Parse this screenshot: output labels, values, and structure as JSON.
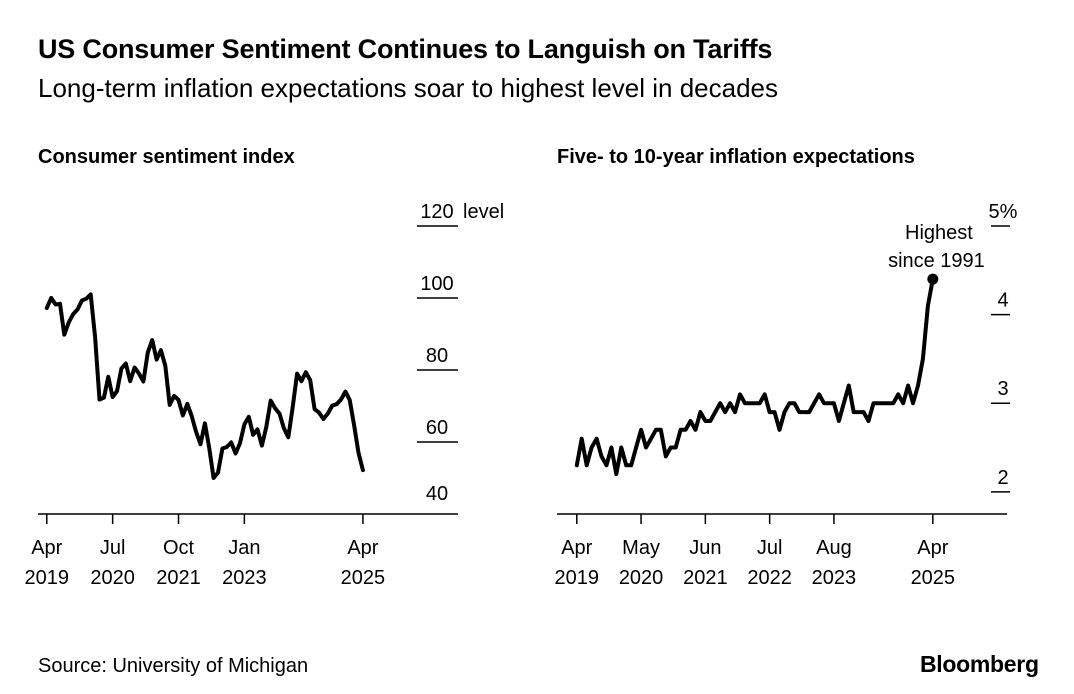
{
  "header": {
    "title": "US Consumer Sentiment Continues to Languish on Tariffs",
    "subtitle": "Long-term inflation expectations soar to highest level in decades"
  },
  "footer": {
    "source": "Source: University of Michigan",
    "brand": "Bloomberg"
  },
  "chart_data": [
    {
      "type": "line",
      "title": "Consumer sentiment index",
      "ylabel": "level",
      "ylim": [
        40,
        120
      ],
      "yticks": [
        {
          "value": 120,
          "label": "120"
        },
        {
          "value": 100,
          "label": "100"
        },
        {
          "value": 80,
          "label": "80"
        },
        {
          "value": 60,
          "label": "60"
        },
        {
          "value": 40,
          "label": "40"
        }
      ],
      "xlim": [
        "2019-02",
        "2026-05"
      ],
      "xticks": [
        {
          "date": "2019-04",
          "month": "Apr",
          "year": "2019"
        },
        {
          "date": "2020-07",
          "month": "Jul",
          "year": "2020"
        },
        {
          "date": "2021-10",
          "month": "Oct",
          "year": "2021"
        },
        {
          "date": "2023-01",
          "month": "Jan",
          "year": "2023"
        },
        {
          "date": "2025-04",
          "month": "Apr",
          "year": "2025"
        }
      ],
      "grid": false,
      "series": [
        {
          "x": [
            "2019-04",
            "2019-05",
            "2019-06",
            "2019-07",
            "2019-08",
            "2019-09",
            "2019-10",
            "2019-11",
            "2019-12",
            "2020-01",
            "2020-02",
            "2020-03",
            "2020-04",
            "2020-05",
            "2020-06",
            "2020-07",
            "2020-08",
            "2020-09",
            "2020-10",
            "2020-11",
            "2020-12",
            "2021-01",
            "2021-02",
            "2021-03",
            "2021-04",
            "2021-05",
            "2021-06",
            "2021-07",
            "2021-08",
            "2021-09",
            "2021-10",
            "2021-11",
            "2021-12",
            "2022-01",
            "2022-02",
            "2022-03",
            "2022-04",
            "2022-05",
            "2022-06",
            "2022-07",
            "2022-08",
            "2022-09",
            "2022-10",
            "2022-11",
            "2022-12",
            "2023-01",
            "2023-02",
            "2023-03",
            "2023-04",
            "2023-05",
            "2023-06",
            "2023-07",
            "2023-08",
            "2023-09",
            "2023-10",
            "2023-11",
            "2023-12",
            "2024-01",
            "2024-02",
            "2024-03",
            "2024-04",
            "2024-05",
            "2024-06",
            "2024-07",
            "2024-08",
            "2024-09",
            "2024-10",
            "2024-11",
            "2024-12",
            "2025-01",
            "2025-02",
            "2025-03",
            "2025-04"
          ],
          "values": [
            97.2,
            100.0,
            98.2,
            98.4,
            89.8,
            93.2,
            95.5,
            96.8,
            99.3,
            99.8,
            101.0,
            89.1,
            71.8,
            72.3,
            78.1,
            72.5,
            74.1,
            80.4,
            81.8,
            76.9,
            80.7,
            79.0,
            76.8,
            84.9,
            88.3,
            82.9,
            85.5,
            81.2,
            70.3,
            72.8,
            71.7,
            67.4,
            70.6,
            67.2,
            62.8,
            59.4,
            65.2,
            58.4,
            50.0,
            51.5,
            58.2,
            58.6,
            59.9,
            56.8,
            59.7,
            64.9,
            67.0,
            62.0,
            63.5,
            59.0,
            64.2,
            71.5,
            69.4,
            67.9,
            63.8,
            61.3,
            69.7,
            79.0,
            76.9,
            79.4,
            77.2,
            69.1,
            68.2,
            66.4,
            67.9,
            70.1,
            70.5,
            71.8,
            74.0,
            71.7,
            64.7,
            57.0,
            52.2
          ]
        }
      ]
    },
    {
      "type": "line",
      "title": "Five- to 10-year inflation expectations",
      "ylabel": "%",
      "ylim": [
        1.75,
        5.0
      ],
      "yticks": [
        {
          "value": 5,
          "label": "5%"
        },
        {
          "value": 4,
          "label": "4"
        },
        {
          "value": 3,
          "label": "3"
        },
        {
          "value": 2,
          "label": "2"
        }
      ],
      "xlim": [
        "2018-12",
        "2026-07"
      ],
      "xticks": [
        {
          "date": "2019-04",
          "month": "Apr",
          "year": "2019"
        },
        {
          "date": "2020-05",
          "month": "May",
          "year": "2020"
        },
        {
          "date": "2021-06",
          "month": "Jun",
          "year": "2021"
        },
        {
          "date": "2022-07",
          "month": "Jul",
          "year": "2022"
        },
        {
          "date": "2023-08",
          "month": "Aug",
          "year": "2023"
        },
        {
          "date": "2025-04",
          "month": "Apr",
          "year": "2025"
        }
      ],
      "grid": false,
      "annotation": {
        "date": "2025-04",
        "value": 4.4,
        "line1": "Highest",
        "line2": "since 1991"
      },
      "series": [
        {
          "x": [
            "2019-04",
            "2019-05",
            "2019-06",
            "2019-07",
            "2019-08",
            "2019-09",
            "2019-10",
            "2019-11",
            "2019-12",
            "2020-01",
            "2020-02",
            "2020-03",
            "2020-04",
            "2020-05",
            "2020-06",
            "2020-07",
            "2020-08",
            "2020-09",
            "2020-10",
            "2020-11",
            "2020-12",
            "2021-01",
            "2021-02",
            "2021-03",
            "2021-04",
            "2021-05",
            "2021-06",
            "2021-07",
            "2021-08",
            "2021-09",
            "2021-10",
            "2021-11",
            "2021-12",
            "2022-01",
            "2022-02",
            "2022-03",
            "2022-04",
            "2022-05",
            "2022-06",
            "2022-07",
            "2022-08",
            "2022-09",
            "2022-10",
            "2022-11",
            "2022-12",
            "2023-01",
            "2023-02",
            "2023-03",
            "2023-04",
            "2023-05",
            "2023-06",
            "2023-07",
            "2023-08",
            "2023-09",
            "2023-10",
            "2023-11",
            "2023-12",
            "2024-01",
            "2024-02",
            "2024-03",
            "2024-04",
            "2024-05",
            "2024-06",
            "2024-07",
            "2024-08",
            "2024-09",
            "2024-10",
            "2024-11",
            "2024-12",
            "2025-01",
            "2025-02",
            "2025-03",
            "2025-04"
          ],
          "values": [
            2.3,
            2.6,
            2.3,
            2.5,
            2.6,
            2.4,
            2.3,
            2.5,
            2.2,
            2.5,
            2.3,
            2.3,
            2.5,
            2.7,
            2.5,
            2.6,
            2.7,
            2.7,
            2.4,
            2.5,
            2.5,
            2.7,
            2.7,
            2.8,
            2.7,
            2.9,
            2.8,
            2.8,
            2.9,
            3.0,
            2.9,
            3.0,
            2.9,
            3.1,
            3.0,
            3.0,
            3.0,
            3.0,
            3.1,
            2.9,
            2.9,
            2.7,
            2.9,
            3.0,
            3.0,
            2.9,
            2.9,
            2.9,
            3.0,
            3.1,
            3.0,
            3.0,
            3.0,
            2.8,
            3.0,
            3.2,
            2.9,
            2.9,
            2.9,
            2.8,
            3.0,
            3.0,
            3.0,
            3.0,
            3.0,
            3.1,
            3.0,
            3.2,
            3.0,
            3.2,
            3.5,
            4.1,
            4.4
          ]
        }
      ]
    }
  ]
}
